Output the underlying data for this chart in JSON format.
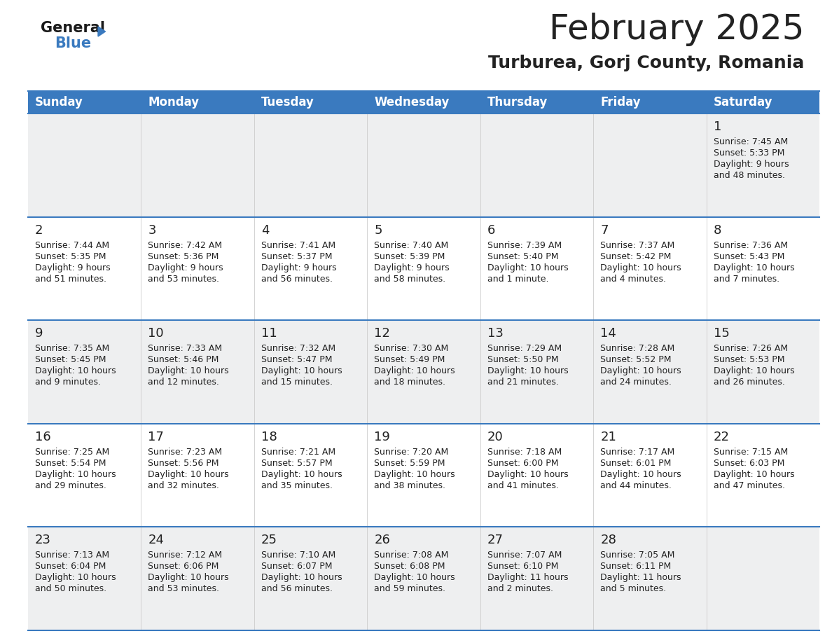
{
  "title": "February 2025",
  "subtitle": "Turburea, Gorj County, Romania",
  "header_color": "#3a7abf",
  "header_text_color": "#ffffff",
  "row_bg_odd": "#eeeff0",
  "row_bg_even": "#ffffff",
  "border_color": "#3a7abf",
  "text_color": "#222222",
  "days_of_week": [
    "Sunday",
    "Monday",
    "Tuesday",
    "Wednesday",
    "Thursday",
    "Friday",
    "Saturday"
  ],
  "calendar_data": [
    [
      null,
      null,
      null,
      null,
      null,
      null,
      {
        "day": "1",
        "sunrise": "7:45 AM",
        "sunset": "5:33 PM",
        "daylight_line1": "Daylight: 9 hours",
        "daylight_line2": "and 48 minutes."
      }
    ],
    [
      {
        "day": "2",
        "sunrise": "7:44 AM",
        "sunset": "5:35 PM",
        "daylight_line1": "Daylight: 9 hours",
        "daylight_line2": "and 51 minutes."
      },
      {
        "day": "3",
        "sunrise": "7:42 AM",
        "sunset": "5:36 PM",
        "daylight_line1": "Daylight: 9 hours",
        "daylight_line2": "and 53 minutes."
      },
      {
        "day": "4",
        "sunrise": "7:41 AM",
        "sunset": "5:37 PM",
        "daylight_line1": "Daylight: 9 hours",
        "daylight_line2": "and 56 minutes."
      },
      {
        "day": "5",
        "sunrise": "7:40 AM",
        "sunset": "5:39 PM",
        "daylight_line1": "Daylight: 9 hours",
        "daylight_line2": "and 58 minutes."
      },
      {
        "day": "6",
        "sunrise": "7:39 AM",
        "sunset": "5:40 PM",
        "daylight_line1": "Daylight: 10 hours",
        "daylight_line2": "and 1 minute."
      },
      {
        "day": "7",
        "sunrise": "7:37 AM",
        "sunset": "5:42 PM",
        "daylight_line1": "Daylight: 10 hours",
        "daylight_line2": "and 4 minutes."
      },
      {
        "day": "8",
        "sunrise": "7:36 AM",
        "sunset": "5:43 PM",
        "daylight_line1": "Daylight: 10 hours",
        "daylight_line2": "and 7 minutes."
      }
    ],
    [
      {
        "day": "9",
        "sunrise": "7:35 AM",
        "sunset": "5:45 PM",
        "daylight_line1": "Daylight: 10 hours",
        "daylight_line2": "and 9 minutes."
      },
      {
        "day": "10",
        "sunrise": "7:33 AM",
        "sunset": "5:46 PM",
        "daylight_line1": "Daylight: 10 hours",
        "daylight_line2": "and 12 minutes."
      },
      {
        "day": "11",
        "sunrise": "7:32 AM",
        "sunset": "5:47 PM",
        "daylight_line1": "Daylight: 10 hours",
        "daylight_line2": "and 15 minutes."
      },
      {
        "day": "12",
        "sunrise": "7:30 AM",
        "sunset": "5:49 PM",
        "daylight_line1": "Daylight: 10 hours",
        "daylight_line2": "and 18 minutes."
      },
      {
        "day": "13",
        "sunrise": "7:29 AM",
        "sunset": "5:50 PM",
        "daylight_line1": "Daylight: 10 hours",
        "daylight_line2": "and 21 minutes."
      },
      {
        "day": "14",
        "sunrise": "7:28 AM",
        "sunset": "5:52 PM",
        "daylight_line1": "Daylight: 10 hours",
        "daylight_line2": "and 24 minutes."
      },
      {
        "day": "15",
        "sunrise": "7:26 AM",
        "sunset": "5:53 PM",
        "daylight_line1": "Daylight: 10 hours",
        "daylight_line2": "and 26 minutes."
      }
    ],
    [
      {
        "day": "16",
        "sunrise": "7:25 AM",
        "sunset": "5:54 PM",
        "daylight_line1": "Daylight: 10 hours",
        "daylight_line2": "and 29 minutes."
      },
      {
        "day": "17",
        "sunrise": "7:23 AM",
        "sunset": "5:56 PM",
        "daylight_line1": "Daylight: 10 hours",
        "daylight_line2": "and 32 minutes."
      },
      {
        "day": "18",
        "sunrise": "7:21 AM",
        "sunset": "5:57 PM",
        "daylight_line1": "Daylight: 10 hours",
        "daylight_line2": "and 35 minutes."
      },
      {
        "day": "19",
        "sunrise": "7:20 AM",
        "sunset": "5:59 PM",
        "daylight_line1": "Daylight: 10 hours",
        "daylight_line2": "and 38 minutes."
      },
      {
        "day": "20",
        "sunrise": "7:18 AM",
        "sunset": "6:00 PM",
        "daylight_line1": "Daylight: 10 hours",
        "daylight_line2": "and 41 minutes."
      },
      {
        "day": "21",
        "sunrise": "7:17 AM",
        "sunset": "6:01 PM",
        "daylight_line1": "Daylight: 10 hours",
        "daylight_line2": "and 44 minutes."
      },
      {
        "day": "22",
        "sunrise": "7:15 AM",
        "sunset": "6:03 PM",
        "daylight_line1": "Daylight: 10 hours",
        "daylight_line2": "and 47 minutes."
      }
    ],
    [
      {
        "day": "23",
        "sunrise": "7:13 AM",
        "sunset": "6:04 PM",
        "daylight_line1": "Daylight: 10 hours",
        "daylight_line2": "and 50 minutes."
      },
      {
        "day": "24",
        "sunrise": "7:12 AM",
        "sunset": "6:06 PM",
        "daylight_line1": "Daylight: 10 hours",
        "daylight_line2": "and 53 minutes."
      },
      {
        "day": "25",
        "sunrise": "7:10 AM",
        "sunset": "6:07 PM",
        "daylight_line1": "Daylight: 10 hours",
        "daylight_line2": "and 56 minutes."
      },
      {
        "day": "26",
        "sunrise": "7:08 AM",
        "sunset": "6:08 PM",
        "daylight_line1": "Daylight: 10 hours",
        "daylight_line2": "and 59 minutes."
      },
      {
        "day": "27",
        "sunrise": "7:07 AM",
        "sunset": "6:10 PM",
        "daylight_line1": "Daylight: 11 hours",
        "daylight_line2": "and 2 minutes."
      },
      {
        "day": "28",
        "sunrise": "7:05 AM",
        "sunset": "6:11 PM",
        "daylight_line1": "Daylight: 11 hours",
        "daylight_line2": "and 5 minutes."
      },
      null
    ]
  ],
  "logo_general_color": "#1a1a1a",
  "logo_blue_color": "#3a7abf",
  "title_fontsize": 36,
  "subtitle_fontsize": 18,
  "header_fontsize": 12,
  "day_num_fontsize": 13,
  "cell_text_fontsize": 9
}
